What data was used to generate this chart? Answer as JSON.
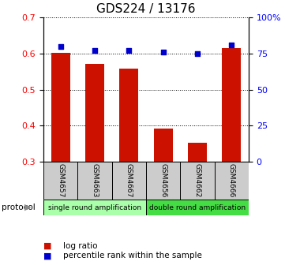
{
  "title": "GDS224 / 13176",
  "samples": [
    "GSM4657",
    "GSM4663",
    "GSM4667",
    "GSM4656",
    "GSM4662",
    "GSM4666"
  ],
  "log_ratio": [
    0.601,
    0.57,
    0.558,
    0.392,
    0.352,
    0.614
  ],
  "percentile_rank": [
    80,
    77,
    77,
    76,
    75,
    81
  ],
  "ylim_left": [
    0.3,
    0.7
  ],
  "ylim_right": [
    0,
    100
  ],
  "yticks_left": [
    0.3,
    0.4,
    0.5,
    0.6,
    0.7
  ],
  "yticks_right": [
    0,
    25,
    50,
    75,
    100
  ],
  "bar_color": "#cc1100",
  "dot_color": "#0000cc",
  "protocol_groups": [
    {
      "label": "single round amplification",
      "start": 0,
      "end": 3,
      "color": "#aaffaa"
    },
    {
      "label": "double round amplification",
      "start": 3,
      "end": 6,
      "color": "#44dd44"
    }
  ],
  "protocol_label": "protocol",
  "legend_items": [
    {
      "label": "log ratio",
      "color": "#cc1100"
    },
    {
      "label": "percentile rank within the sample",
      "color": "#0000cc"
    }
  ],
  "title_fontsize": 11,
  "tick_fontsize": 8,
  "sample_fontsize": 6.5,
  "proto_fontsize": 6.5,
  "legend_fontsize": 7.5
}
